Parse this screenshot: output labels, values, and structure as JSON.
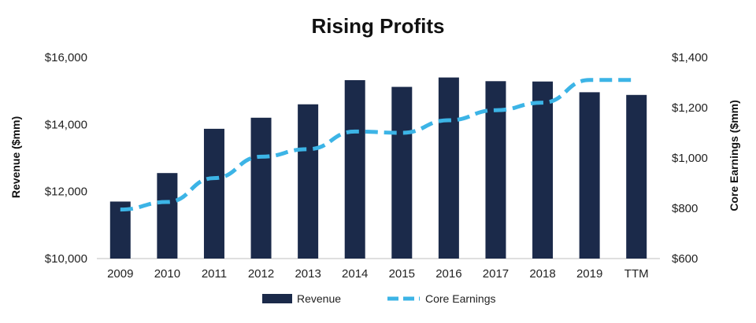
{
  "chart_data": {
    "type": "bar",
    "title": "Rising Profits",
    "categories": [
      "2009",
      "2010",
      "2011",
      "2012",
      "2013",
      "2014",
      "2015",
      "2016",
      "2017",
      "2018",
      "2019",
      "TTM"
    ],
    "series": [
      {
        "name": "Revenue",
        "type": "bar",
        "axis": "left",
        "color": "#1b2a4a",
        "values": [
          11700,
          12550,
          13870,
          14200,
          14600,
          15320,
          15120,
          15400,
          15290,
          15280,
          14960,
          14880
        ]
      },
      {
        "name": "Core Earnings",
        "type": "line",
        "style": "dashed",
        "axis": "right",
        "color": "#3cb4e6",
        "values": [
          795,
          825,
          920,
          1005,
          1035,
          1105,
          1100,
          1150,
          1190,
          1220,
          1310,
          1310
        ]
      }
    ],
    "ylabel": "Revenue ($mm)",
    "ylabel_right": "Core Earnings ($mm)",
    "ylim": [
      10000,
      16000
    ],
    "ylim_right": [
      600,
      1400
    ],
    "yticks": [
      "$10,000",
      "$12,000",
      "$14,000",
      "$16,000"
    ],
    "yticks_right": [
      "$600",
      "$800",
      "$1,000",
      "$1,200",
      "$1,400"
    ],
    "ytick_values": [
      10000,
      12000,
      14000,
      16000
    ],
    "ytick_values_right": [
      600,
      800,
      1000,
      1200,
      1400
    ],
    "grid": false,
    "legend_position": "bottom-center"
  }
}
